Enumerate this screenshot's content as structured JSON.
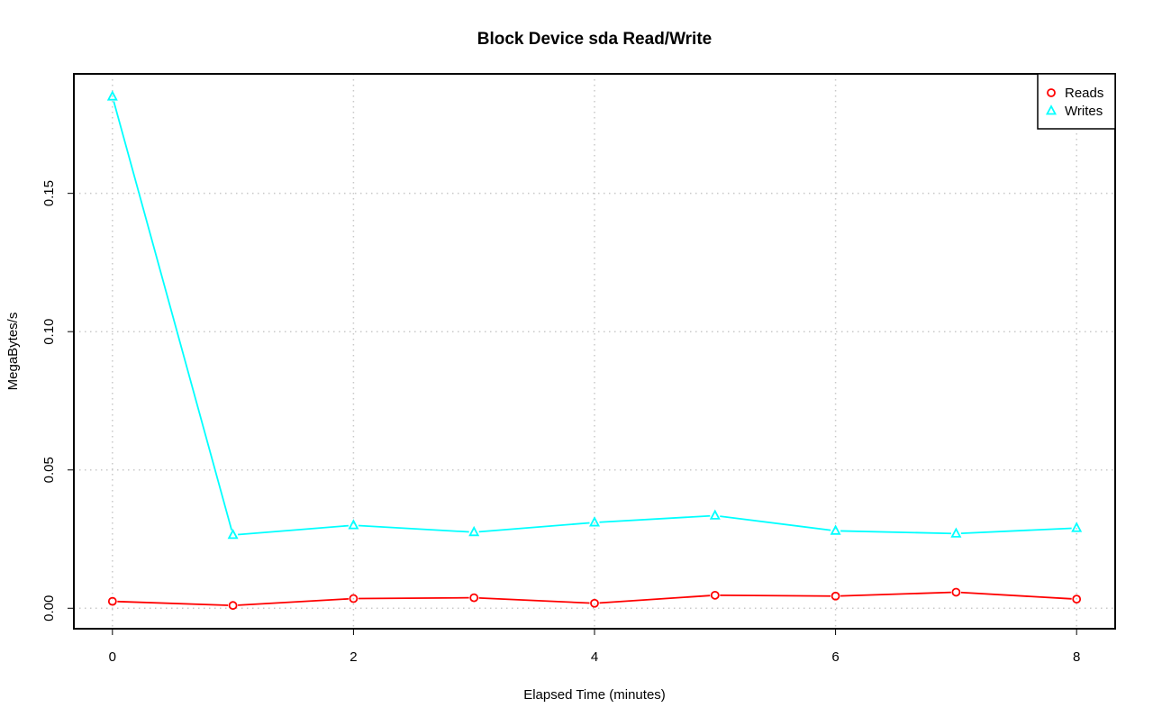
{
  "chart_data": {
    "type": "line",
    "title": "Block Device sda Read/Write",
    "xlabel": "Elapsed Time (minutes)",
    "ylabel": "MegaBytes/s",
    "x": [
      0,
      1,
      2,
      3,
      4,
      5,
      6,
      7,
      8
    ],
    "xlim": [
      -0.32,
      8.32
    ],
    "ylim": [
      -0.0074,
      0.1932
    ],
    "x_ticks": [
      0,
      2,
      4,
      6,
      8
    ],
    "y_ticks": [
      0.0,
      0.05,
      0.1,
      0.15
    ],
    "y_tick_labels": [
      "0.00",
      "0.05",
      "0.10",
      "0.15"
    ],
    "grid": true,
    "legend_position": "top-right",
    "series": [
      {
        "name": "Reads",
        "marker": "circle",
        "color": "#ff0000",
        "values": [
          0.0025,
          0.001,
          0.0035,
          0.0038,
          0.0018,
          0.0047,
          0.0044,
          0.0058,
          0.0033
        ]
      },
      {
        "name": "Writes",
        "marker": "triangle",
        "color": "#00ffff",
        "values": [
          0.185,
          0.0265,
          0.03,
          0.0275,
          0.031,
          0.0335,
          0.028,
          0.027,
          0.029
        ]
      }
    ]
  }
}
